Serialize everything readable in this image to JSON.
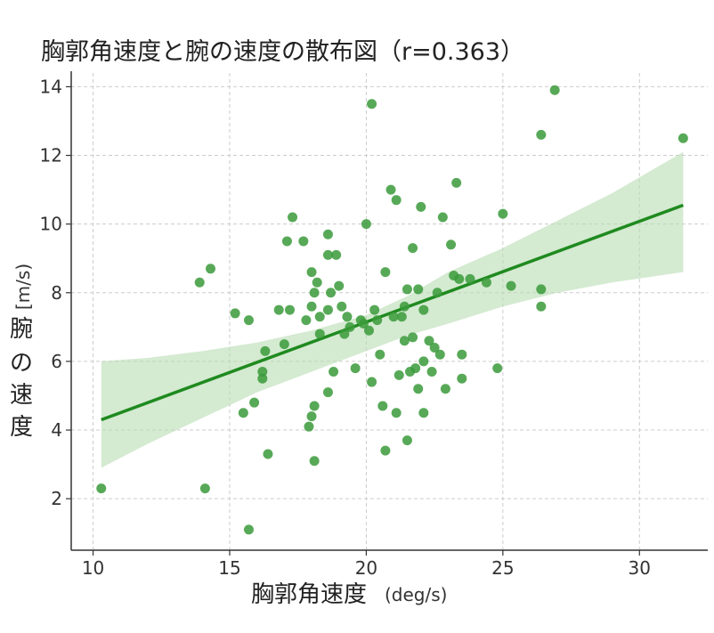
{
  "chart_data": {
    "type": "scatter",
    "title": "胸郭角速度と腕の速度の散布図（r=0.363）",
    "xlabel": "胸郭角速度",
    "xunit": "(deg/s)",
    "ylabel_chars": [
      "腕",
      "の",
      "速",
      "度"
    ],
    "yunit": "[m/s)",
    "xlim": [
      9.2,
      32.5
    ],
    "ylim": [
      0.5,
      14.4
    ],
    "xticks": [
      10,
      15,
      20,
      25,
      30
    ],
    "yticks": [
      2,
      4,
      6,
      8,
      10,
      12,
      14
    ],
    "grid": true,
    "point_color": "#3a9a3a",
    "line_color": "#1f8a1f",
    "band_color": "#b7dcb2",
    "regression": {
      "x": [
        10.3,
        31.6
      ],
      "y": [
        4.3,
        10.55
      ]
    },
    "confidence_band": {
      "x": [
        10.3,
        12,
        14,
        16,
        18,
        20,
        21.5,
        23,
        25,
        27,
        29,
        31.6
      ],
      "upper": [
        6.0,
        6.1,
        6.3,
        6.55,
        6.9,
        7.35,
        7.9,
        8.6,
        9.3,
        10.1,
        10.9,
        12.1
      ],
      "lower": [
        2.9,
        3.6,
        4.35,
        5.1,
        5.7,
        6.3,
        6.75,
        7.1,
        7.6,
        8.0,
        8.3,
        8.6
      ]
    },
    "points": [
      [
        10.3,
        2.3
      ],
      [
        13.9,
        8.3
      ],
      [
        14.1,
        2.3
      ],
      [
        14.3,
        8.7
      ],
      [
        15.2,
        7.4
      ],
      [
        15.7,
        7.2
      ],
      [
        15.5,
        4.5
      ],
      [
        15.7,
        1.1
      ],
      [
        15.9,
        4.8
      ],
      [
        16.2,
        5.7
      ],
      [
        16.2,
        5.5
      ],
      [
        16.3,
        6.3
      ],
      [
        16.4,
        3.3
      ],
      [
        16.8,
        7.5
      ],
      [
        17.0,
        6.5
      ],
      [
        17.1,
        9.5
      ],
      [
        17.2,
        7.5
      ],
      [
        17.3,
        10.2
      ],
      [
        17.7,
        9.5
      ],
      [
        17.8,
        7.2
      ],
      [
        17.9,
        4.1
      ],
      [
        18.0,
        8.6
      ],
      [
        18.0,
        7.6
      ],
      [
        18.0,
        4.4
      ],
      [
        18.1,
        4.7
      ],
      [
        18.1,
        3.1
      ],
      [
        18.1,
        8.0
      ],
      [
        18.2,
        8.3
      ],
      [
        18.3,
        7.3
      ],
      [
        18.3,
        6.8
      ],
      [
        18.6,
        9.7
      ],
      [
        18.6,
        9.1
      ],
      [
        18.6,
        7.5
      ],
      [
        18.6,
        5.1
      ],
      [
        18.7,
        8.0
      ],
      [
        18.8,
        5.7
      ],
      [
        18.9,
        9.1
      ],
      [
        19.0,
        8.2
      ],
      [
        19.1,
        7.6
      ],
      [
        19.2,
        6.8
      ],
      [
        19.3,
        7.3
      ],
      [
        19.4,
        7.0
      ],
      [
        19.6,
        5.8
      ],
      [
        19.8,
        7.2
      ],
      [
        19.9,
        7.1
      ],
      [
        20.0,
        10.0
      ],
      [
        20.1,
        6.9
      ],
      [
        20.2,
        13.5
      ],
      [
        20.2,
        5.4
      ],
      [
        20.3,
        7.5
      ],
      [
        20.4,
        7.2
      ],
      [
        20.5,
        6.2
      ],
      [
        20.6,
        4.7
      ],
      [
        20.7,
        3.4
      ],
      [
        20.7,
        8.6
      ],
      [
        20.9,
        11.0
      ],
      [
        21.0,
        7.3
      ],
      [
        21.1,
        10.7
      ],
      [
        21.1,
        4.5
      ],
      [
        21.2,
        5.6
      ],
      [
        21.3,
        7.3
      ],
      [
        21.4,
        7.6
      ],
      [
        21.4,
        6.6
      ],
      [
        21.5,
        8.1
      ],
      [
        21.5,
        3.7
      ],
      [
        21.6,
        5.7
      ],
      [
        21.7,
        9.3
      ],
      [
        21.7,
        6.7
      ],
      [
        21.8,
        5.8
      ],
      [
        21.9,
        5.2
      ],
      [
        21.9,
        8.1
      ],
      [
        22.0,
        10.5
      ],
      [
        22.1,
        7.5
      ],
      [
        22.1,
        6.0
      ],
      [
        22.1,
        4.5
      ],
      [
        22.3,
        6.6
      ],
      [
        22.4,
        5.7
      ],
      [
        22.5,
        6.4
      ],
      [
        22.6,
        8.0
      ],
      [
        22.7,
        6.2
      ],
      [
        22.8,
        10.2
      ],
      [
        22.9,
        5.2
      ],
      [
        23.1,
        9.4
      ],
      [
        23.2,
        8.5
      ],
      [
        23.3,
        11.2
      ],
      [
        23.4,
        8.4
      ],
      [
        23.5,
        6.2
      ],
      [
        23.5,
        5.5
      ],
      [
        23.8,
        8.4
      ],
      [
        24.4,
        8.3
      ],
      [
        24.8,
        5.8
      ],
      [
        25.0,
        10.3
      ],
      [
        25.3,
        8.2
      ],
      [
        26.4,
        12.6
      ],
      [
        26.4,
        8.1
      ],
      [
        26.4,
        7.6
      ],
      [
        26.9,
        13.9
      ],
      [
        31.6,
        12.5
      ]
    ]
  }
}
